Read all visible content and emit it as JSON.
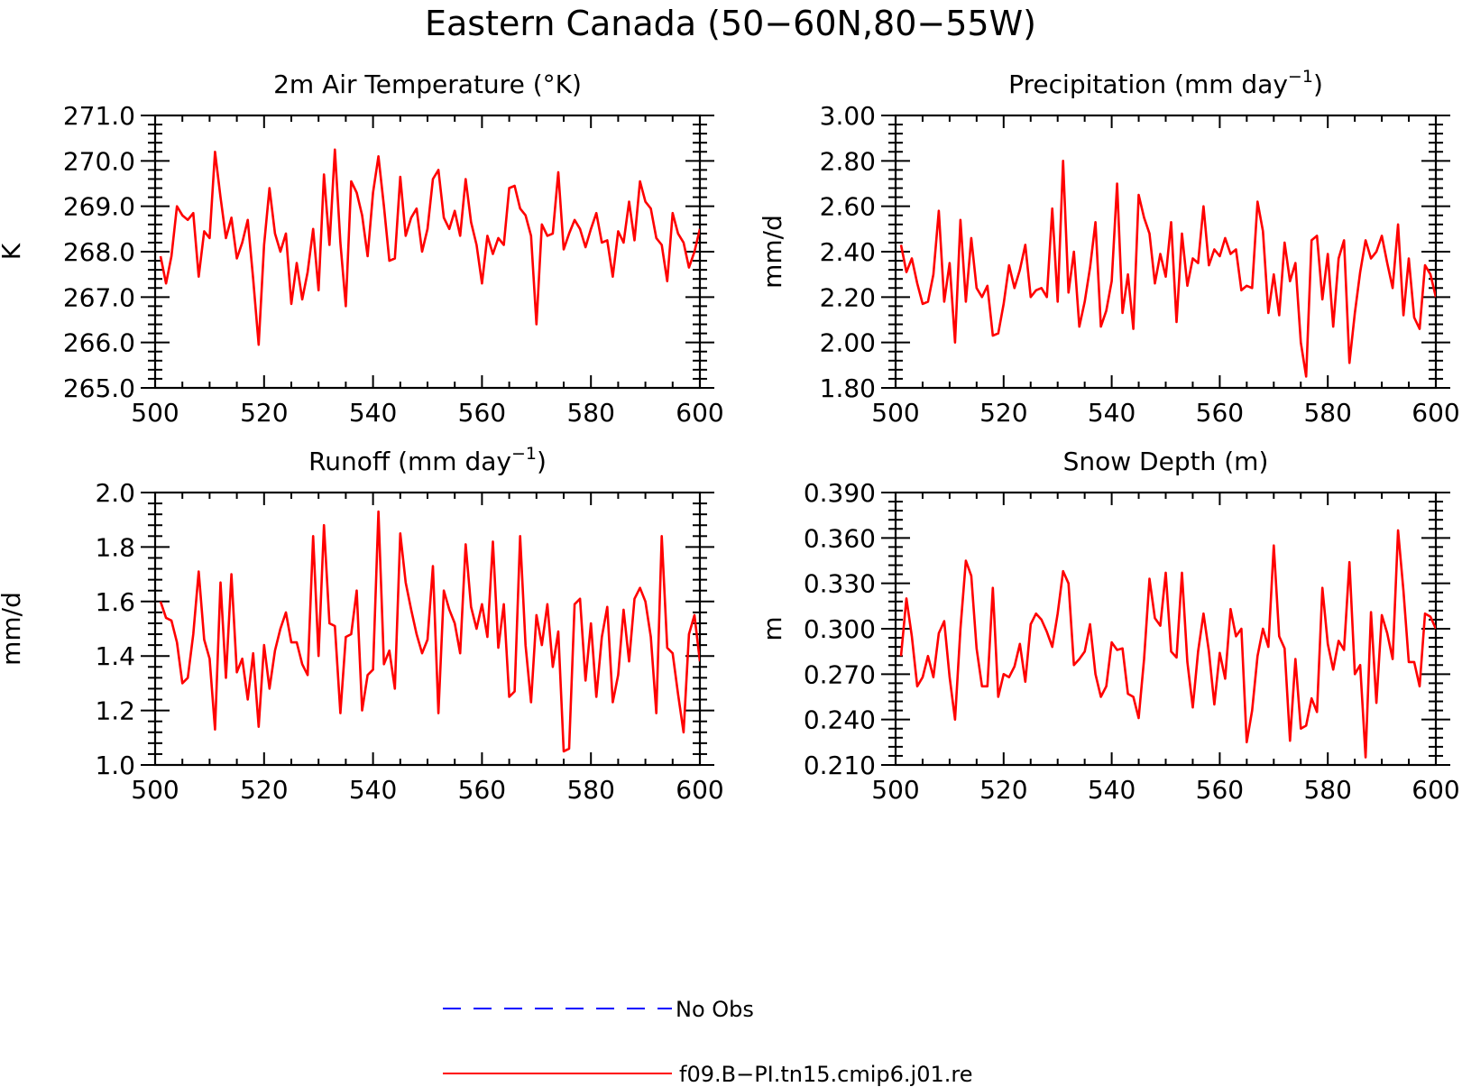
{
  "figure_title": "Eastern Canada (50−60N,80−55W)",
  "colors": {
    "model": "#ff0000",
    "obs": "#0000ff",
    "axis": "#000000"
  },
  "legend": {
    "items": [
      {
        "label": "No Obs",
        "color": "#0000ff",
        "style": "dashed"
      },
      {
        "label": "f09.B−PI.tn15.cmip6.j01.re",
        "color": "#ff0000",
        "style": "solid"
      }
    ]
  },
  "chart_data": [
    {
      "type": "line",
      "title": "2m Air Temperature (°K)",
      "xlabel": "",
      "ylabel": "K",
      "xlim": [
        500,
        600
      ],
      "ylim": [
        265,
        271
      ],
      "xticks": [
        "500",
        "520",
        "540",
        "560",
        "580",
        "600"
      ],
      "yticks": [
        "265.0",
        "266.0",
        "267.0",
        "268.0",
        "269.0",
        "270.0",
        "271.0"
      ],
      "x_start": 501,
      "series": [
        {
          "name": "f09.B−PI.tn15.cmip6.j01.re",
          "values": [
            267.9,
            267.3,
            267.9,
            269.0,
            268.8,
            268.7,
            268.85,
            267.45,
            268.45,
            268.3,
            270.2,
            269.2,
            268.3,
            268.75,
            267.85,
            268.2,
            268.7,
            267.4,
            265.95,
            268.15,
            269.4,
            268.4,
            268.0,
            268.4,
            266.85,
            267.75,
            266.95,
            267.55,
            268.5,
            267.15,
            269.7,
            268.15,
            270.25,
            268.2,
            266.8,
            269.55,
            269.3,
            268.8,
            267.9,
            269.3,
            270.1,
            269.0,
            267.8,
            267.85,
            269.65,
            268.35,
            268.75,
            268.95,
            268.0,
            268.5,
            269.6,
            269.8,
            268.75,
            268.5,
            268.9,
            268.35,
            269.6,
            268.65,
            268.15,
            267.3,
            268.35,
            267.95,
            268.3,
            268.15,
            269.4,
            269.45,
            268.95,
            268.8,
            268.35,
            266.4,
            268.6,
            268.35,
            268.4,
            269.75,
            268.05,
            268.4,
            268.7,
            268.5,
            268.1,
            268.5,
            268.85,
            268.2,
            268.25,
            267.45,
            268.45,
            268.2,
            269.1,
            268.25,
            269.55,
            269.1,
            268.95,
            268.3,
            268.15,
            267.35,
            268.85,
            268.4,
            268.2,
            267.65,
            268.0,
            268.5
          ]
        }
      ]
    },
    {
      "type": "line",
      "title": "Precipitation (mm day⁻¹)",
      "xlabel": "",
      "ylabel": "mm/d",
      "xlim": [
        500,
        600
      ],
      "ylim": [
        1.8,
        3.0
      ],
      "xticks": [
        "500",
        "520",
        "540",
        "560",
        "580",
        "600"
      ],
      "yticks": [
        "1.80",
        "2.00",
        "2.20",
        "2.40",
        "2.60",
        "2.80",
        "3.00"
      ],
      "x_start": 501,
      "series": [
        {
          "name": "f09.B−PI.tn15.cmip6.j01.re",
          "values": [
            2.43,
            2.31,
            2.37,
            2.26,
            2.17,
            2.18,
            2.3,
            2.58,
            2.18,
            2.35,
            2.0,
            2.54,
            2.18,
            2.46,
            2.24,
            2.2,
            2.25,
            2.03,
            2.04,
            2.17,
            2.34,
            2.24,
            2.32,
            2.43,
            2.2,
            2.23,
            2.24,
            2.2,
            2.59,
            2.18,
            2.8,
            2.22,
            2.4,
            2.07,
            2.18,
            2.33,
            2.53,
            2.07,
            2.14,
            2.27,
            2.7,
            2.13,
            2.3,
            2.06,
            2.65,
            2.55,
            2.48,
            2.26,
            2.39,
            2.29,
            2.53,
            2.09,
            2.48,
            2.25,
            2.37,
            2.35,
            2.6,
            2.34,
            2.41,
            2.38,
            2.46,
            2.39,
            2.41,
            2.23,
            2.25,
            2.24,
            2.62,
            2.49,
            2.13,
            2.3,
            2.12,
            2.44,
            2.27,
            2.35,
            2.0,
            1.85,
            2.45,
            2.47,
            2.19,
            2.39,
            2.07,
            2.37,
            2.45,
            1.91,
            2.13,
            2.31,
            2.45,
            2.37,
            2.4,
            2.47,
            2.35,
            2.24,
            2.52,
            2.12,
            2.37,
            2.11,
            2.06,
            2.34,
            2.3,
            2.2
          ]
        }
      ]
    },
    {
      "type": "line",
      "title": "Runoff (mm day⁻¹)",
      "xlabel": "",
      "ylabel": "mm/d",
      "xlim": [
        500,
        600
      ],
      "ylim": [
        1.0,
        2.0
      ],
      "xticks": [
        "500",
        "520",
        "540",
        "560",
        "580",
        "600"
      ],
      "yticks": [
        "1.0",
        "1.2",
        "1.4",
        "1.6",
        "1.8",
        "2.0"
      ],
      "x_start": 501,
      "series": [
        {
          "name": "f09.B−PI.tn15.cmip6.j01.re",
          "values": [
            1.6,
            1.54,
            1.53,
            1.45,
            1.3,
            1.32,
            1.48,
            1.71,
            1.46,
            1.39,
            1.13,
            1.67,
            1.32,
            1.7,
            1.34,
            1.39,
            1.24,
            1.41,
            1.14,
            1.44,
            1.28,
            1.42,
            1.5,
            1.56,
            1.45,
            1.45,
            1.37,
            1.33,
            1.84,
            1.4,
            1.88,
            1.52,
            1.51,
            1.19,
            1.47,
            1.48,
            1.64,
            1.2,
            1.33,
            1.35,
            1.93,
            1.37,
            1.42,
            1.28,
            1.85,
            1.67,
            1.57,
            1.48,
            1.41,
            1.46,
            1.73,
            1.19,
            1.64,
            1.57,
            1.52,
            1.41,
            1.81,
            1.58,
            1.5,
            1.59,
            1.47,
            1.82,
            1.43,
            1.59,
            1.25,
            1.27,
            1.84,
            1.44,
            1.23,
            1.55,
            1.44,
            1.59,
            1.36,
            1.49,
            1.05,
            1.06,
            1.59,
            1.61,
            1.31,
            1.52,
            1.25,
            1.47,
            1.58,
            1.23,
            1.33,
            1.57,
            1.38,
            1.61,
            1.65,
            1.6,
            1.47,
            1.19,
            1.84,
            1.43,
            1.41,
            1.26,
            1.12,
            1.48,
            1.55,
            1.38
          ]
        }
      ]
    },
    {
      "type": "line",
      "title": "Snow Depth (m)",
      "xlabel": "",
      "ylabel": "m",
      "xlim": [
        500,
        600
      ],
      "ylim": [
        0.21,
        0.39
      ],
      "xticks": [
        "500",
        "520",
        "540",
        "560",
        "580",
        "600"
      ],
      "yticks": [
        "0.210",
        "0.240",
        "0.270",
        "0.300",
        "0.330",
        "0.360",
        "0.390"
      ],
      "x_start": 501,
      "series": [
        {
          "name": "f09.B−PI.tn15.cmip6.j01.re",
          "values": [
            0.282,
            0.32,
            0.295,
            0.262,
            0.268,
            0.282,
            0.268,
            0.297,
            0.305,
            0.268,
            0.24,
            0.3,
            0.345,
            0.335,
            0.287,
            0.262,
            0.262,
            0.327,
            0.255,
            0.27,
            0.268,
            0.275,
            0.29,
            0.265,
            0.303,
            0.31,
            0.306,
            0.298,
            0.288,
            0.31,
            0.338,
            0.33,
            0.276,
            0.28,
            0.285,
            0.303,
            0.27,
            0.255,
            0.262,
            0.291,
            0.286,
            0.287,
            0.257,
            0.255,
            0.241,
            0.28,
            0.333,
            0.307,
            0.302,
            0.337,
            0.285,
            0.281,
            0.337,
            0.278,
            0.248,
            0.285,
            0.31,
            0.285,
            0.25,
            0.284,
            0.267,
            0.313,
            0.295,
            0.3,
            0.225,
            0.246,
            0.282,
            0.3,
            0.288,
            0.355,
            0.295,
            0.287,
            0.226,
            0.28,
            0.234,
            0.236,
            0.254,
            0.245,
            0.327,
            0.29,
            0.273,
            0.292,
            0.286,
            0.344,
            0.27,
            0.276,
            0.215,
            0.311,
            0.251,
            0.309,
            0.297,
            0.28,
            0.365,
            0.325,
            0.278,
            0.278,
            0.262,
            0.31,
            0.308,
            0.3
          ]
        }
      ]
    }
  ]
}
